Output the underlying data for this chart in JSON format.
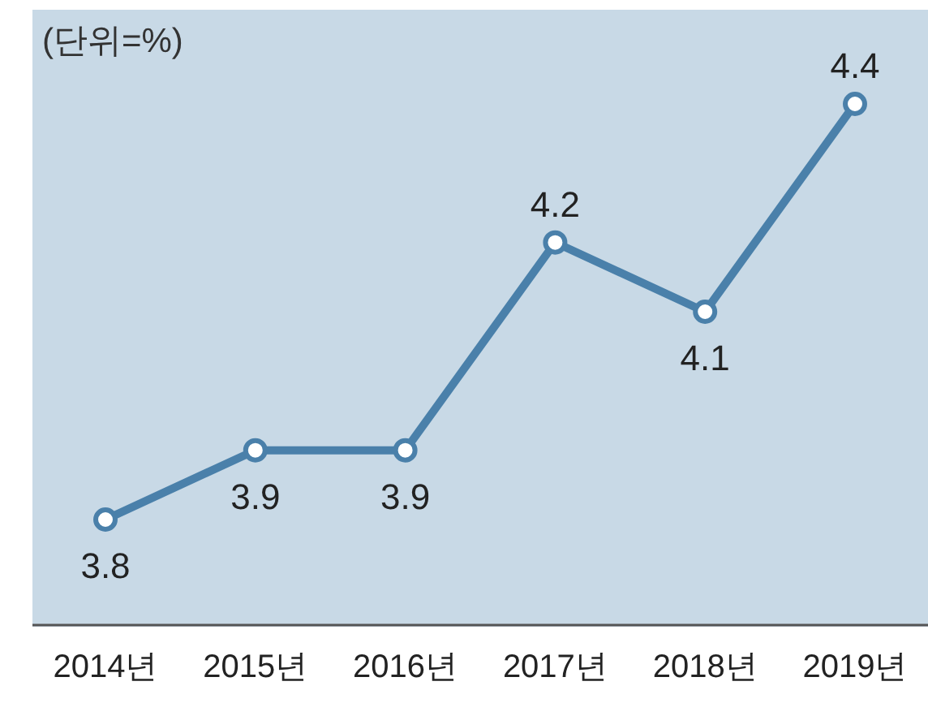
{
  "chart_data": {
    "type": "line",
    "categories": [
      "2014년",
      "2015년",
      "2016년",
      "2017년",
      "2018년",
      "2019년"
    ],
    "series": [
      {
        "color": "#4a80aa",
        "values": [
          3.8,
          3.9,
          3.9,
          4.2,
          4.1,
          4.4
        ]
      }
    ],
    "data_labels": true,
    "marker": "circle",
    "line_style": "solid",
    "annotations": [
      "(단위=%)"
    ]
  }
}
